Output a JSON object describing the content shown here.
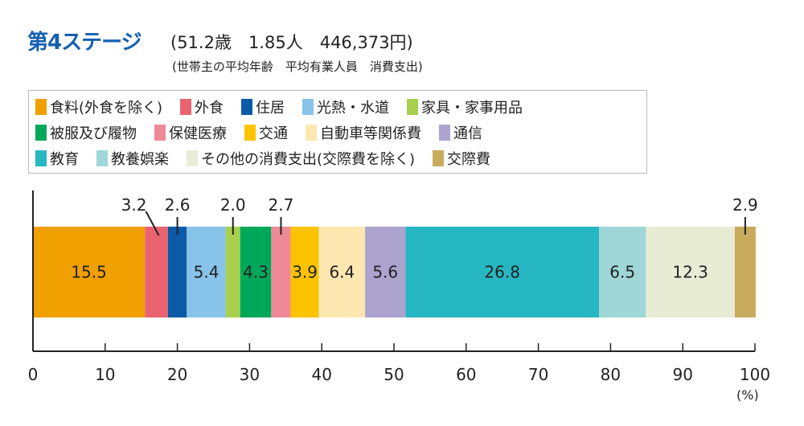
{
  "header": {
    "title": "第4ステージ",
    "stats": "(51.2歳　1.85人　446,373円)",
    "stats_note": "(世帯主の平均年齢　平均有業人員　消費支出)"
  },
  "chart_data": {
    "type": "bar",
    "orientation": "horizontal-stacked",
    "xlim": [
      0,
      100
    ],
    "xticks": [
      0,
      10,
      20,
      30,
      40,
      50,
      60,
      70,
      80,
      90,
      100
    ],
    "xlabel": "(%)",
    "legend_position": "top",
    "series": [
      {
        "name": "食料(外食を除く)",
        "value": 15.5,
        "color": "#f0a000",
        "label_inside": true,
        "text_color": "#222"
      },
      {
        "name": "外食",
        "value": 3.2,
        "color": "#ea6370",
        "label_inside": false
      },
      {
        "name": "住居",
        "value": 2.6,
        "color": "#0a5aa8",
        "label_inside": false
      },
      {
        "name": "光熱・水道",
        "value": 5.4,
        "color": "#88c3ea",
        "label_inside": true
      },
      {
        "name": "家具・家事用品",
        "value": 2.0,
        "color": "#a9cf4e",
        "label_inside": false
      },
      {
        "name": "被服及び履物",
        "value": 4.3,
        "color": "#00a85a",
        "label_inside": true
      },
      {
        "name": "保健医療",
        "value": 2.7,
        "color": "#ee8a98",
        "label_inside": false
      },
      {
        "name": "交通",
        "value": 3.9,
        "color": "#fcc400",
        "label_inside": true
      },
      {
        "name": "自動車等関係費",
        "value": 6.4,
        "color": "#fde7b0",
        "label_inside": true
      },
      {
        "name": "通信",
        "value": 5.6,
        "color": "#ada3cf",
        "label_inside": true
      },
      {
        "name": "教育",
        "value": 26.8,
        "color": "#26b7c2",
        "label_inside": true
      },
      {
        "name": "教養娯楽",
        "value": 6.5,
        "color": "#9fd6d8",
        "label_inside": true
      },
      {
        "name": "その他の消費支出(交際費を除く)",
        "value": 12.3,
        "color": "#e8ecd5",
        "label_inside": true
      },
      {
        "name": "交際費",
        "value": 2.9,
        "color": "#c9ab5e",
        "label_inside": false
      }
    ],
    "legend_rows": [
      [
        0,
        1,
        2,
        3,
        4
      ],
      [
        5,
        6,
        7,
        8,
        9
      ],
      [
        10,
        11,
        12,
        13
      ]
    ]
  }
}
